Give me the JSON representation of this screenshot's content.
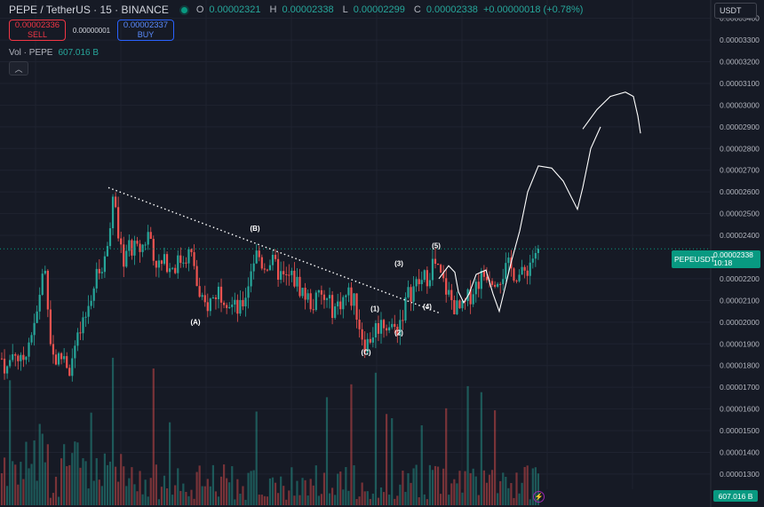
{
  "header": {
    "title": "PEPE / TetherUS · 15 · BINANCE",
    "ohlc": [
      {
        "k": "O",
        "v": "0.00002321"
      },
      {
        "k": "H",
        "v": "0.00002338"
      },
      {
        "k": "L",
        "v": "0.00002299"
      },
      {
        "k": "C",
        "v": "0.00002338"
      }
    ],
    "change": "+0.00000018 (+0.78%)"
  },
  "trade": {
    "sell_price": "0.00002336",
    "sell_label": "SELL",
    "spread": "0.00000001",
    "buy_price": "0.00002337",
    "buy_label": "BUY"
  },
  "volume_legend": {
    "label": "Vol · PEPE",
    "value": "607.016 B"
  },
  "currency": {
    "selected": "USDT"
  },
  "price_tag": {
    "symbol": "PEPEUSDT",
    "price": "0.00002338",
    "countdown": "10:18"
  },
  "volume_tag": "607.016 B",
  "icons": {
    "collapse": "chevron-up-icon",
    "bolt": "lightning-icon",
    "currency": "chevron-down-icon"
  },
  "colors": {
    "up": "#26a69a",
    "down": "#ef5350",
    "bg": "#161a25",
    "grid": "#1f2330",
    "axis_text": "#b2b5be"
  },
  "chart_data": {
    "type": "candlestick",
    "y_ticks": [
      "0.00003400",
      "0.00003300",
      "0.00003200",
      "0.00003100",
      "0.00003000",
      "0.00002900",
      "0.00002800",
      "0.00002700",
      "0.00002600",
      "0.00002500",
      "0.00002400",
      "0.00002200",
      "0.00002100",
      "0.00002000",
      "0.00001900",
      "0.00001800",
      "0.00001700",
      "0.00001600",
      "0.00001500",
      "0.00001400",
      "0.00001300"
    ],
    "ylim": [
      1.23e-05,
      3.46e-05
    ],
    "last_price": 2.338e-05,
    "price_path": [
      [
        0,
        1.85e-05
      ],
      [
        8,
        1.78e-05
      ],
      [
        16,
        1.88e-05
      ],
      [
        24,
        1.8e-05
      ],
      [
        32,
        1.92e-05
      ],
      [
        40,
        1.98e-05
      ],
      [
        46,
        2.18e-05
      ],
      [
        50,
        2.26e-05
      ],
      [
        54,
        2.1e-05
      ],
      [
        58,
        1.86e-05
      ],
      [
        64,
        1.82e-05
      ],
      [
        72,
        1.85e-05
      ],
      [
        78,
        1.78e-05
      ],
      [
        86,
        1.9e-05
      ],
      [
        94,
        1.98e-05
      ],
      [
        102,
        2.12e-05
      ],
      [
        110,
        2.22e-05
      ],
      [
        118,
        2.28e-05
      ],
      [
        124,
        2.48e-05
      ],
      [
        128,
        2.61e-05
      ],
      [
        132,
        2.4e-05
      ],
      [
        138,
        2.28e-05
      ],
      [
        146,
        2.36e-05
      ],
      [
        154,
        2.32e-05
      ],
      [
        162,
        2.36e-05
      ],
      [
        168,
        2.42e-05
      ],
      [
        174,
        2.3e-05
      ],
      [
        180,
        2.25e-05
      ],
      [
        188,
        2.28e-05
      ],
      [
        196,
        2.26e-05
      ],
      [
        204,
        2.29e-05
      ],
      [
        212,
        2.32e-05
      ],
      [
        218,
        2.28e-05
      ],
      [
        224,
        2.1e-05
      ],
      [
        230,
        2.07e-05
      ],
      [
        238,
        2.1e-05
      ],
      [
        246,
        2.15e-05
      ],
      [
        254,
        2.12e-05
      ],
      [
        262,
        2.07e-05
      ],
      [
        270,
        2.05e-05
      ],
      [
        278,
        2.15e-05
      ],
      [
        284,
        2.28e-05
      ],
      [
        290,
        2.32e-05
      ],
      [
        296,
        2.26e-05
      ],
      [
        304,
        2.28e-05
      ],
      [
        312,
        2.24e-05
      ],
      [
        320,
        2.19e-05
      ],
      [
        328,
        2.21e-05
      ],
      [
        336,
        2.17e-05
      ],
      [
        344,
        2.12e-05
      ],
      [
        352,
        2.08e-05
      ],
      [
        360,
        2.12e-05
      ],
      [
        368,
        2.09e-05
      ],
      [
        376,
        2.06e-05
      ],
      [
        384,
        2.1e-05
      ],
      [
        392,
        2.13e-05
      ],
      [
        400,
        2.08e-05
      ],
      [
        406,
        1.96e-05
      ],
      [
        412,
        1.89e-05
      ],
      [
        418,
        1.94e-05
      ],
      [
        424,
        1.98e-05
      ],
      [
        432,
        2e-05
      ],
      [
        440,
        1.98e-05
      ],
      [
        446,
        1.96e-05
      ],
      [
        452,
        2.03e-05
      ],
      [
        460,
        2.13e-05
      ],
      [
        468,
        2.17e-05
      ],
      [
        476,
        2.19e-05
      ],
      [
        482,
        2.22e-05
      ],
      [
        488,
        2.28e-05
      ],
      [
        494,
        2.22e-05
      ],
      [
        500,
        2.17e-05
      ],
      [
        508,
        2.1e-05
      ],
      [
        514,
        2.06e-05
      ],
      [
        520,
        2.05e-05
      ],
      [
        526,
        2.1e-05
      ],
      [
        532,
        2.15e-05
      ],
      [
        540,
        2.2e-05
      ],
      [
        548,
        2.23e-05
      ],
      [
        556,
        2.21e-05
      ],
      [
        564,
        2.22e-05
      ],
      [
        572,
        2.25e-05
      ],
      [
        580,
        2.23e-05
      ],
      [
        588,
        2.21e-05
      ],
      [
        596,
        2.27e-05
      ],
      [
        602,
        2.32e-05
      ],
      [
        608,
        2.34e-05
      ]
    ],
    "trendline": [
      [
        2.62e-05,
        122
      ],
      [
        2.04e-05,
        496
      ]
    ],
    "wave_labels": [
      {
        "text": "(A)",
        "x": 220,
        "price": 1.99e-05
      },
      {
        "text": "(B)",
        "x": 287,
        "price": 2.42e-05
      },
      {
        "text": "(C)",
        "x": 412,
        "price": 1.85e-05
      },
      {
        "text": "(1)",
        "x": 422,
        "price": 2.05e-05
      },
      {
        "text": "(2)",
        "x": 449,
        "price": 1.94e-05
      },
      {
        "text": "(3)",
        "x": 449,
        "price": 2.26e-05
      },
      {
        "text": "(4)",
        "x": 481,
        "price": 2.06e-05
      },
      {
        "text": "(5)",
        "x": 491,
        "price": 2.34e-05
      }
    ],
    "projection": [
      [
        2.2e-05,
        494
      ],
      [
        2.26e-05,
        505
      ],
      [
        2.23e-05,
        512
      ],
      [
        2.14e-05,
        516
      ],
      [
        2.09e-05,
        522
      ],
      [
        2.13e-05,
        528
      ],
      [
        2.22e-05,
        536
      ],
      [
        2.24e-05,
        547
      ],
      [
        2.13e-05,
        555
      ],
      [
        2.05e-05,
        562
      ],
      [
        2.15e-05,
        568
      ],
      [
        2.27e-05,
        575
      ],
      [
        2.42e-05,
        585
      ],
      [
        2.6e-05,
        594
      ],
      [
        2.72e-05,
        606
      ],
      [
        2.71e-05,
        621
      ],
      [
        2.65e-05,
        634
      ],
      [
        2.52e-05,
        650
      ],
      [
        2.62e-05,
        656
      ],
      [
        2.8e-05,
        665
      ],
      [
        2.9e-05,
        676
      ]
    ],
    "projection2": [
      [
        2.89e-05,
        656
      ],
      [
        2.98e-05,
        672
      ],
      [
        3.04e-05,
        687
      ],
      [
        3.06e-05,
        704
      ],
      [
        3.04e-05,
        713
      ],
      [
        2.95e-05,
        718
      ],
      [
        2.87e-05,
        721
      ]
    ]
  }
}
